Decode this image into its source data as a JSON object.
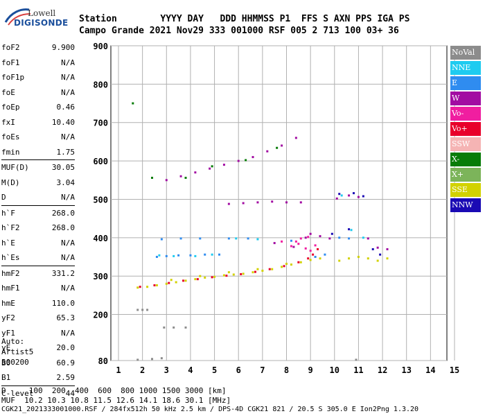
{
  "logo": {
    "line1": "Lowell",
    "line2": "DIGISONDE"
  },
  "header": {
    "labels": "Station        YYYY DAY   DDD HHMMSS P1  FFS S AXN PPS IGA PS",
    "values": "Campo Grande 2021 Nov29 333 001000 RSF 005 2 713 100 03+ 36"
  },
  "params": [
    {
      "name": "foF2",
      "value": "9.900"
    },
    {
      "name": "foF1",
      "value": "N/A"
    },
    {
      "name": "foF1p",
      "value": "N/A"
    },
    {
      "name": "foE",
      "value": "N/A"
    },
    {
      "name": "foEp",
      "value": "0.46"
    },
    {
      "name": "fxI",
      "value": "10.40"
    },
    {
      "name": "foEs",
      "value": "N/A"
    },
    {
      "name": "fmin",
      "value": "1.75"
    },
    {
      "name": "MUF(D)",
      "value": "30.05"
    },
    {
      "name": "M(D)",
      "value": "3.04"
    },
    {
      "name": "D",
      "value": "N/A"
    },
    {
      "name": "h`F",
      "value": "268.0"
    },
    {
      "name": "h`F2",
      "value": "268.0"
    },
    {
      "name": "h`E",
      "value": "N/A"
    },
    {
      "name": "h`Es",
      "value": "N/A"
    },
    {
      "name": "hmF2",
      "value": "331.2"
    },
    {
      "name": "hmF1",
      "value": "N/A"
    },
    {
      "name": "hmE",
      "value": "110.0"
    },
    {
      "name": "yF2",
      "value": "65.3"
    },
    {
      "name": "yF1",
      "value": "N/A"
    },
    {
      "name": "yE",
      "value": "20.0"
    },
    {
      "name": "B0",
      "value": "60.9"
    },
    {
      "name": "B1",
      "value": "2.59"
    },
    {
      "name": "C-level",
      "value": "44"
    }
  ],
  "auto": {
    "line1": "Auto:",
    "line2": "Artist5",
    "line3": "500200"
  },
  "footer": {
    "d_line": "D     100  200  400  600  800 1000 1500 3000 [km]",
    "muf_line": "MUF  10.2 10.3 10.8 11.5 12.6 14.1 18.6 30.1 [MHz]",
    "file_line": "CGK21_2021333001000.RSF / 284fx512h 50 kHz 2.5 km / DPS-4D CGK21 821 / 20.5 S 305.0 E Ion2Png 1.3.20"
  },
  "legend": [
    {
      "label": "NoVal",
      "color": "#8c8c8c"
    },
    {
      "label": "NNE",
      "color": "#1ecbf0"
    },
    {
      "label": "E",
      "color": "#2f8cf0"
    },
    {
      "label": "W",
      "color": "#a20ca2"
    },
    {
      "label": "Vo-",
      "color": "#f01ea0"
    },
    {
      "label": "Vo+",
      "color": "#e8002a"
    },
    {
      "label": "SSW",
      "color": "#f5b4b4"
    },
    {
      "label": "X-",
      "color": "#087c08"
    },
    {
      "label": "X+",
      "color": "#7cb45a"
    },
    {
      "label": "SSE",
      "color": "#d2d200"
    },
    {
      "label": "NNW",
      "color": "#1a0ab4"
    }
  ],
  "chart_data": {
    "type": "scatter",
    "xlim": [
      1,
      15
    ],
    "ylim": [
      80,
      900
    ],
    "x_ticks": [
      "1",
      "2",
      "3",
      "4",
      "5",
      "6",
      "7",
      "8",
      "9",
      "10",
      "11",
      "12",
      "13",
      "14",
      "15"
    ],
    "y_ticks": [
      "80",
      "200",
      "300",
      "400",
      "500",
      "600",
      "700",
      "800",
      "900"
    ],
    "grid": true,
    "series": [
      {
        "color": "#d2d200",
        "points": [
          [
            1.8,
            270
          ],
          [
            2.2,
            272
          ],
          [
            2.6,
            276
          ],
          [
            3,
            280
          ],
          [
            3.4,
            284
          ],
          [
            3.8,
            288
          ],
          [
            4.2,
            292
          ],
          [
            4.6,
            296
          ],
          [
            5,
            298
          ],
          [
            5.4,
            302
          ],
          [
            5.8,
            304
          ],
          [
            6.2,
            306
          ],
          [
            6.6,
            310
          ],
          [
            7,
            314
          ],
          [
            7.4,
            318
          ],
          [
            7.8,
            324
          ],
          [
            8.2,
            330
          ],
          [
            8.6,
            336
          ],
          [
            9,
            342
          ],
          [
            9.4,
            346
          ],
          [
            10.2,
            340
          ],
          [
            10.6,
            346
          ],
          [
            11,
            350
          ],
          [
            11.4,
            346
          ],
          [
            11.8,
            340
          ],
          [
            12.2,
            346
          ],
          [
            3.2,
            290
          ],
          [
            4.4,
            300
          ],
          [
            5.6,
            310
          ],
          [
            6.8,
            318
          ],
          [
            8,
            332
          ],
          [
            9.2,
            350
          ]
        ]
      },
      {
        "color": "#e8002a",
        "points": [
          [
            1.9,
            272
          ],
          [
            2.5,
            276
          ],
          [
            3.1,
            282
          ],
          [
            3.7,
            288
          ],
          [
            4.3,
            292
          ],
          [
            4.9,
            297
          ],
          [
            5.5,
            301
          ],
          [
            6.1,
            305
          ],
          [
            6.7,
            311
          ],
          [
            7.3,
            318
          ],
          [
            7.9,
            326
          ],
          [
            8.5,
            336
          ],
          [
            8.9,
            346
          ],
          [
            9.1,
            356
          ],
          [
            9.3,
            370
          ]
        ]
      },
      {
        "color": "#f01ea0",
        "points": [
          [
            8.2,
            378
          ],
          [
            8.5,
            384
          ],
          [
            8.8,
            372
          ],
          [
            9.0,
            366
          ],
          [
            8.6,
            398
          ],
          [
            8.9,
            402
          ],
          [
            8.4,
            390
          ],
          [
            9.2,
            380
          ],
          [
            7.8,
            390
          ]
        ]
      },
      {
        "color": "#2f8cf0",
        "points": [
          [
            2.6,
            350
          ],
          [
            3.0,
            352
          ],
          [
            3.5,
            354
          ],
          [
            4.0,
            354
          ],
          [
            4.6,
            356
          ],
          [
            5.2,
            356
          ],
          [
            2.8,
            396
          ],
          [
            3.6,
            398
          ],
          [
            4.4,
            398
          ],
          [
            5.6,
            398
          ],
          [
            6.4,
            398
          ],
          [
            8.2,
            392
          ],
          [
            9.2,
            350
          ],
          [
            9.6,
            356
          ],
          [
            10.2,
            400
          ],
          [
            10.6,
            398
          ]
        ]
      },
      {
        "color": "#1ecbf0",
        "points": [
          [
            2.7,
            354
          ],
          [
            3.3,
            352
          ],
          [
            4.2,
            352
          ],
          [
            4.9,
            356
          ],
          [
            5.9,
            398
          ],
          [
            6.8,
            396
          ],
          [
            10.3,
            510
          ],
          [
            10.7,
            420
          ],
          [
            11.2,
            400
          ]
        ]
      },
      {
        "color": "#a20ca2",
        "points": [
          [
            3.0,
            550
          ],
          [
            3.6,
            560
          ],
          [
            4.2,
            570
          ],
          [
            4.8,
            580
          ],
          [
            5.4,
            590
          ],
          [
            6.0,
            600
          ],
          [
            6.6,
            610
          ],
          [
            7.2,
            625
          ],
          [
            7.8,
            640
          ],
          [
            8.4,
            660
          ],
          [
            5.6,
            488
          ],
          [
            6.2,
            490
          ],
          [
            6.8,
            492
          ],
          [
            7.4,
            494
          ],
          [
            8.0,
            492
          ],
          [
            8.6,
            492
          ],
          [
            10.1,
            502
          ],
          [
            10.6,
            510
          ],
          [
            11.0,
            506
          ],
          [
            11.4,
            398
          ],
          [
            11.8,
            374
          ],
          [
            12.2,
            370
          ],
          [
            8.8,
            400
          ],
          [
            9.0,
            410
          ],
          [
            9.4,
            404
          ],
          [
            9.8,
            398
          ],
          [
            8.3,
            376
          ],
          [
            7.5,
            386
          ]
        ]
      },
      {
        "color": "#1a0ab4",
        "points": [
          [
            10.2,
            514
          ],
          [
            10.8,
            516
          ],
          [
            11.2,
            508
          ],
          [
            11.6,
            370
          ],
          [
            11.9,
            356
          ],
          [
            10.6,
            422
          ],
          [
            9.9,
            410
          ]
        ]
      },
      {
        "color": "#087c08",
        "points": [
          [
            2.4,
            556
          ],
          [
            3.8,
            556
          ],
          [
            4.9,
            586
          ],
          [
            6.3,
            602
          ],
          [
            7.6,
            634
          ],
          [
            1.6,
            750
          ]
        ]
      },
      {
        "color": "#8c8c8c",
        "points": [
          [
            1.8,
            212
          ],
          [
            2.0,
            212
          ],
          [
            2.2,
            212
          ],
          [
            1.8,
            82
          ],
          [
            2.4,
            84
          ],
          [
            2.8,
            86
          ],
          [
            10.9,
            82
          ],
          [
            2.9,
            166
          ],
          [
            3.3,
            166
          ],
          [
            3.8,
            166
          ]
        ]
      }
    ]
  }
}
